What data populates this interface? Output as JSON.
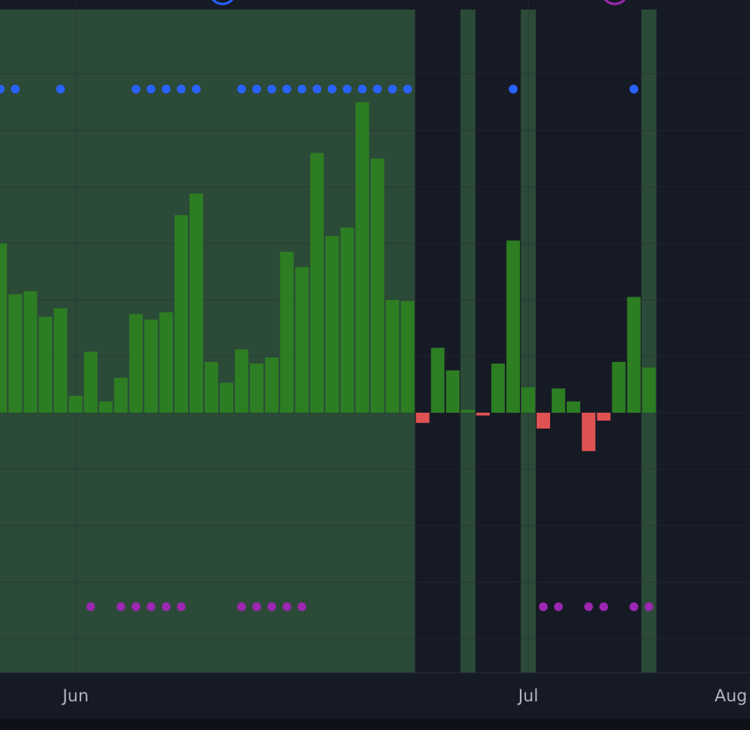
{
  "chart_data": {
    "type": "bar",
    "title": "",
    "xlabel": "",
    "ylabel": "",
    "x_axis": {
      "ticks": [
        {
          "label": "Jun",
          "day": 0
        },
        {
          "label": "Jul",
          "day": 30
        },
        {
          "label": "Aug",
          "day": 61
        }
      ]
    },
    "y_axis": {
      "labels_visible": false,
      "ylim": [
        -5.5,
        6.5
      ]
    },
    "grid": true,
    "legend": "none",
    "colors": {
      "background": "#161a25",
      "grid": "#2a2e39",
      "bar_up": "#2d7d23",
      "bar_down": "#e05252",
      "highlight": "#2b4a37",
      "dot_top": "#2962ff",
      "dot_bottom": "#9c27b0"
    },
    "bars": [
      {
        "day": -7,
        "value": 2.3
      },
      {
        "day": -6,
        "value": 3.65
      },
      {
        "day": -5,
        "value": 3.0
      },
      {
        "day": -4,
        "value": 2.1
      },
      {
        "day": -3,
        "value": 2.15
      },
      {
        "day": -2,
        "value": 1.7
      },
      {
        "day": -1,
        "value": 1.85
      },
      {
        "day": 0,
        "value": 0.3
      },
      {
        "day": 1,
        "value": 1.08
      },
      {
        "day": 2,
        "value": 0.2
      },
      {
        "day": 3,
        "value": 0.62
      },
      {
        "day": 4,
        "value": 1.75
      },
      {
        "day": 5,
        "value": 1.65
      },
      {
        "day": 6,
        "value": 1.78
      },
      {
        "day": 7,
        "value": 3.5
      },
      {
        "day": 8,
        "value": 3.88
      },
      {
        "day": 9,
        "value": 0.9
      },
      {
        "day": 10,
        "value": 0.53
      },
      {
        "day": 11,
        "value": 1.12
      },
      {
        "day": 12,
        "value": 0.87
      },
      {
        "day": 13,
        "value": 0.98
      },
      {
        "day": 14,
        "value": 2.85
      },
      {
        "day": 15,
        "value": 2.58
      },
      {
        "day": 16,
        "value": 4.6
      },
      {
        "day": 17,
        "value": 3.13
      },
      {
        "day": 18,
        "value": 3.28
      },
      {
        "day": 19,
        "value": 5.5
      },
      {
        "day": 20,
        "value": 4.5
      },
      {
        "day": 21,
        "value": 2.0
      },
      {
        "day": 22,
        "value": 1.98
      },
      {
        "day": 23,
        "value": -0.18
      },
      {
        "day": 24,
        "value": 1.15
      },
      {
        "day": 25,
        "value": 0.75
      },
      {
        "day": 26,
        "value": 0.05
      },
      {
        "day": 27,
        "value": -0.05
      },
      {
        "day": 28,
        "value": 0.87
      },
      {
        "day": 29,
        "value": 3.05
      },
      {
        "day": 30,
        "value": 0.45
      },
      {
        "day": 31,
        "value": -0.28
      },
      {
        "day": 32,
        "value": 0.43
      },
      {
        "day": 33,
        "value": 0.2
      },
      {
        "day": 34,
        "value": -0.68
      },
      {
        "day": 35,
        "value": -0.14
      },
      {
        "day": 36,
        "value": 0.9
      },
      {
        "day": 37,
        "value": 2.05
      },
      {
        "day": 38,
        "value": 0.8
      }
    ],
    "highlight_ranges": [
      {
        "from_day": -8,
        "to_day": 22
      },
      {
        "from_day": 26,
        "to_day": 26
      },
      {
        "from_day": 30,
        "to_day": 30
      },
      {
        "from_day": 38,
        "to_day": 38
      }
    ],
    "top_dots": [
      -7,
      -6,
      -5,
      -4,
      -1,
      4,
      5,
      6,
      7,
      8,
      11,
      12,
      13,
      14,
      15,
      16,
      17,
      18,
      19,
      20,
      21,
      22,
      29,
      37
    ],
    "bottom_dots": [
      1,
      3,
      4,
      5,
      6,
      7,
      11,
      12,
      13,
      14,
      15,
      31,
      32,
      34,
      35,
      37,
      38
    ],
    "top_markers": [
      {
        "day": 10,
        "color": "#2962ff"
      },
      {
        "day": 36,
        "color": "#9c27b0"
      }
    ]
  }
}
